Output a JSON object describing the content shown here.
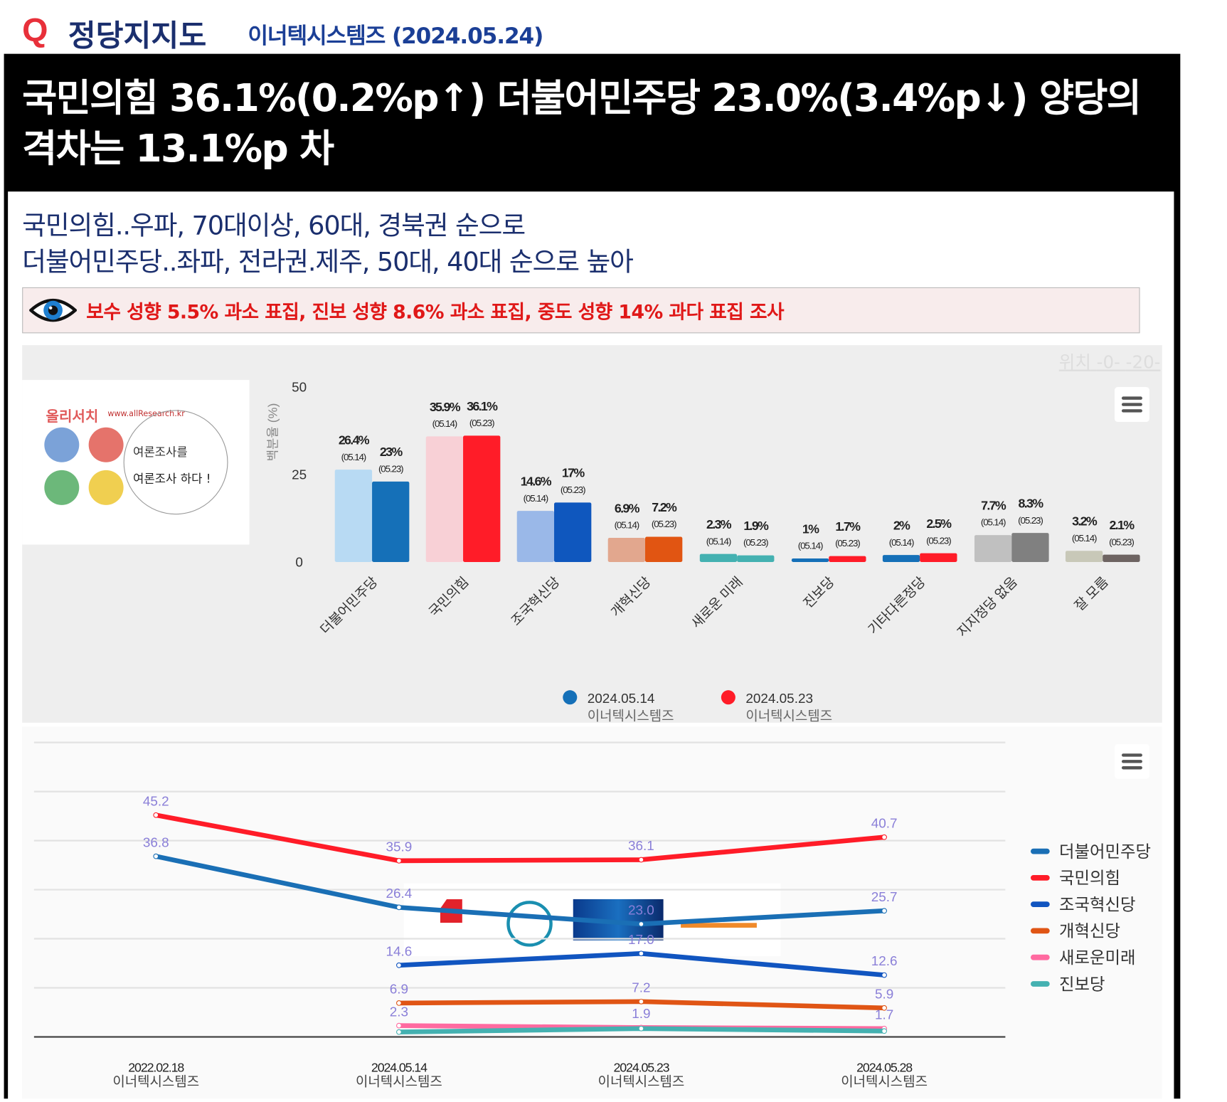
{
  "header": {
    "q_mark": "Q",
    "title": "정당지지도",
    "subtitle": "이너텍시스템즈 (2024.05.24)"
  },
  "headline": "국민의힘 36.1%(0.2%p↑) 더불어민주당 23.0%(3.4%p↓) 양당의 격차는 13.1%p 차",
  "lead": [
    "국민의힘..우파, 70대이상, 60대, 경북권 순으로",
    "더불어민주당..좌파, 전라권.제주, 50대, 40대 순으로 높아"
  ],
  "alert": {
    "icon": "eye-icon",
    "text": "보수 성향 5.5% 과소 표집, 진보 성향 8.6% 과소 표집, 중도 성향 14% 과다 표집 조사"
  },
  "position_link": {
    "label": "위치",
    "a": "-0-",
    "b": "-20-"
  },
  "logo": {
    "brand": "올리서치",
    "url": "www.allResearch.kr",
    "slogan1": "여론조사를",
    "slogan2": "여론조사 하다 !"
  },
  "chart_data": [
    {
      "type": "bar",
      "ylabel": "백분율 (%)",
      "ylim": [
        0,
        50
      ],
      "yticks": [
        "0",
        "25",
        "50"
      ],
      "categories": [
        "더불어민주당",
        "국민의힘",
        "조국혁신당",
        "개혁신당",
        "새로운 미래",
        "진보당",
        "기타다른정당",
        "지지정당 없음",
        "잘 모름"
      ],
      "series": [
        {
          "name": "2024.05.14",
          "sub": "이너텍시스템즈",
          "tag": "(05.14)",
          "legend_color": "#1570b8",
          "values": [
            26.4,
            35.9,
            14.6,
            6.9,
            2.3,
            1,
            2,
            7.7,
            3.2
          ],
          "labels": [
            "26.4%",
            "35.9%",
            "14.6%",
            "6.9%",
            "2.3%",
            "1%",
            "2%",
            "7.7%",
            "3.2%"
          ],
          "colors": [
            "#b8daf3",
            "#f8d0d6",
            "#9ab8e8",
            "#e2a78e",
            "#44b1b1",
            "#1570b8",
            "#1570b8",
            "#c0c0c0",
            "#c8c8b8"
          ]
        },
        {
          "name": "2024.05.23",
          "sub": "이너텍시스템즈",
          "tag": "(05.23)",
          "legend_color": "#ff1c28",
          "values": [
            23,
            36.1,
            17,
            7.2,
            1.9,
            1.7,
            2.5,
            8.3,
            2.1
          ],
          "labels": [
            "23%",
            "36.1%",
            "17%",
            "7.2%",
            "1.9%",
            "1.7%",
            "2.5%",
            "8.3%",
            "2.1%"
          ],
          "colors": [
            "#1570b8",
            "#ff1c28",
            "#0f57be",
            "#e15512",
            "#44b1b1",
            "#ff1c28",
            "#ff1c28",
            "#808080",
            "#6e6462"
          ]
        }
      ],
      "legend": "bottom-center"
    },
    {
      "type": "line",
      "ylim": [
        0,
        60
      ],
      "categories": [
        {
          "date": "2022.02.18",
          "src": "이너텍시스템즈"
        },
        {
          "date": "2024.05.14",
          "src": "이너텍시스템즈"
        },
        {
          "date": "2024.05.23",
          "src": "이너텍시스템즈"
        },
        {
          "date": "2024.05.28",
          "src": "이너텍시스템즈"
        }
      ],
      "series": [
        {
          "name": "더불어민주당",
          "color": "#1a6fb5",
          "values": [
            36.8,
            26.4,
            23.0,
            25.7
          ],
          "labels": [
            "36.8",
            "26.4",
            "23.0",
            "25.7"
          ]
        },
        {
          "name": "국민의힘",
          "color": "#ff1c28",
          "values": [
            45.2,
            35.9,
            36.1,
            40.7
          ],
          "labels": [
            "45.2",
            "35.9",
            "36.1",
            "40.7"
          ]
        },
        {
          "name": "조국혁신당",
          "color": "#1155c0",
          "values": [
            null,
            14.6,
            17.0,
            12.6
          ],
          "labels": [
            null,
            "14.6",
            "17.0",
            "12.6"
          ]
        },
        {
          "name": "개혁신당",
          "color": "#e05515",
          "values": [
            null,
            6.9,
            7.2,
            5.9
          ],
          "labels": [
            null,
            "6.9",
            "7.2",
            "5.9"
          ]
        },
        {
          "name": "새로운미래",
          "color": "#ff6aa0",
          "values": [
            null,
            2.3,
            1.9,
            1.7
          ],
          "labels": [
            null,
            "2.3",
            "1.9",
            "1.7"
          ]
        },
        {
          "name": "진보당",
          "color": "#44b1b1",
          "values": [
            null,
            1.0,
            1.7,
            1.2
          ],
          "labels": [
            null,
            null,
            null,
            null
          ]
        }
      ],
      "legend": "right",
      "logos": [
        "국민의힘",
        "더불어민주당",
        "조국혁신당",
        "개혁신당"
      ]
    }
  ]
}
